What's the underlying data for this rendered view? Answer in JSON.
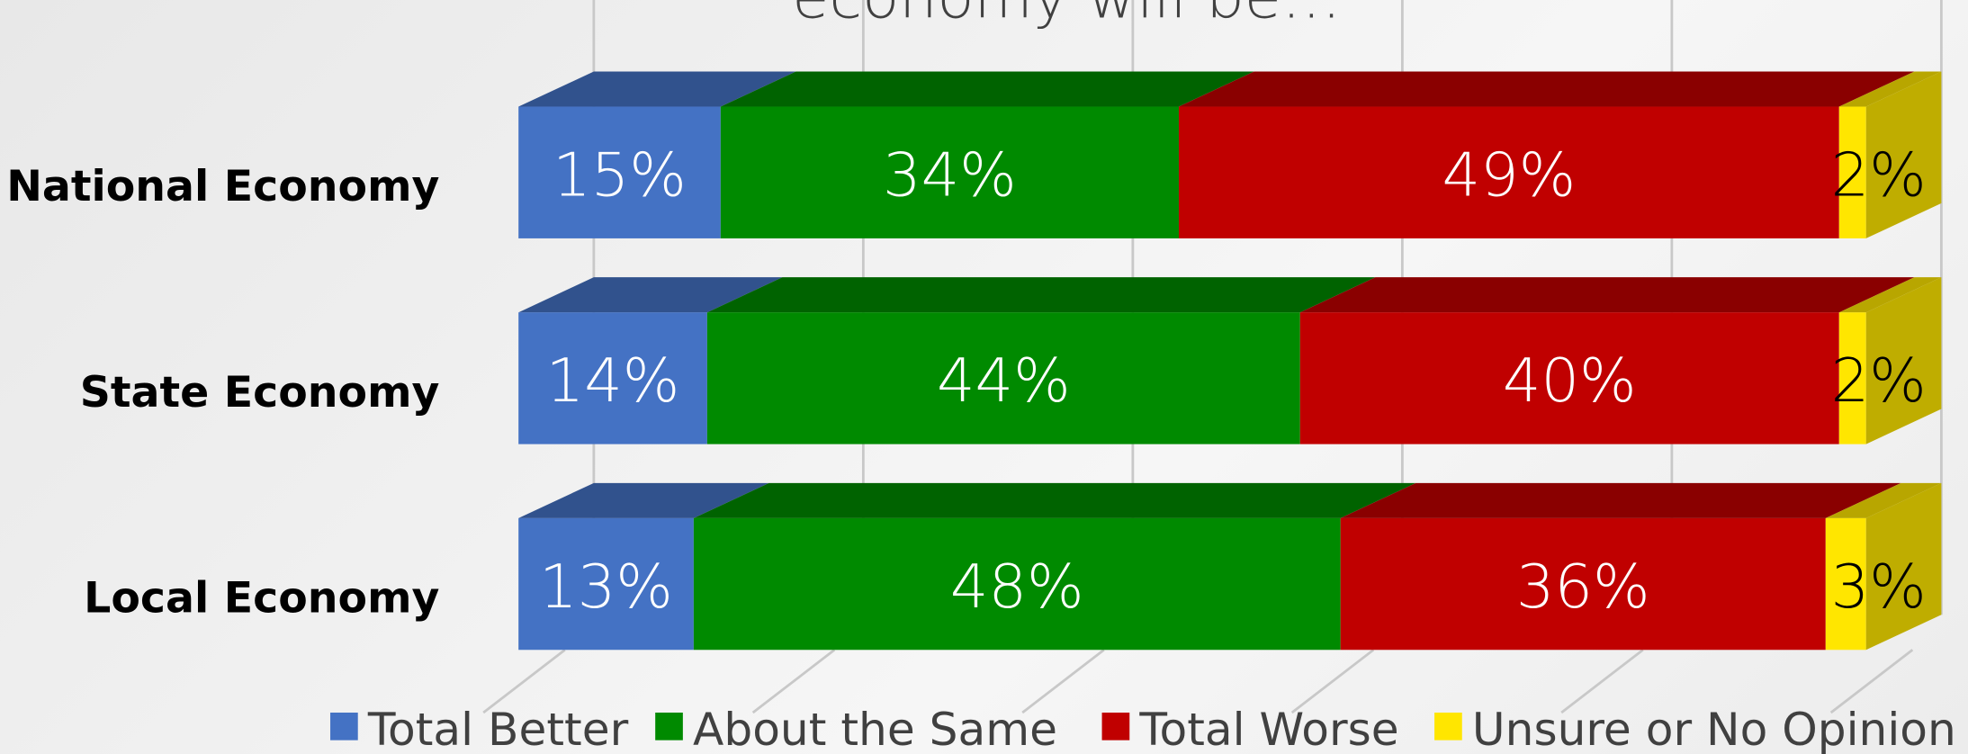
{
  "chart_data": {
    "type": "bar",
    "orientation": "horizontal",
    "stacked": true,
    "three_d": true,
    "title": "economy will be…",
    "categories": [
      "National Economy",
      "State Economy",
      "Local Economy"
    ],
    "series": [
      {
        "name": "Total Better",
        "color": "#4472c4",
        "values": [
          15,
          14,
          13
        ],
        "value_labels": [
          "15%",
          "14%",
          "13%"
        ]
      },
      {
        "name": "About the Same",
        "color": "#008a00",
        "values": [
          34,
          44,
          48
        ],
        "value_labels": [
          "34%",
          "44%",
          "48%"
        ]
      },
      {
        "name": "Total Worse",
        "color": "#c00000",
        "values": [
          49,
          40,
          36
        ],
        "value_labels": [
          "49%",
          "40%",
          "36%"
        ]
      },
      {
        "name": "Unsure or No Opinion",
        "color": "#ffe600",
        "values": [
          2,
          2,
          3
        ],
        "value_labels": [
          "2%",
          "2%",
          "3%"
        ]
      }
    ],
    "xlim": [
      0,
      100
    ],
    "xticks": [
      0,
      20,
      40,
      60,
      80,
      100
    ],
    "grid": true,
    "legend": "bottom"
  }
}
